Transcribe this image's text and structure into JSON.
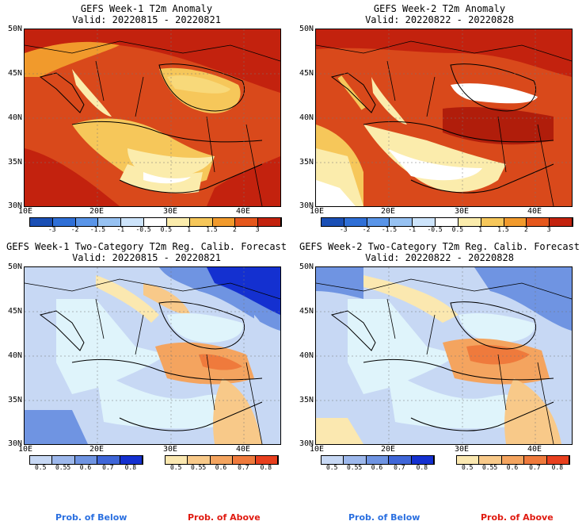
{
  "panels": [
    {
      "title1": "GEFS Week-1 T2m Anomaly",
      "title2": "Valid: 20220815 - 20220821",
      "type": "anomaly"
    },
    {
      "title1": "GEFS Week-2 T2m Anomaly",
      "title2": "Valid: 20220822 - 20220828",
      "type": "anomaly"
    },
    {
      "title1": "GEFS Week-1 Two-Category T2m Reg. Calib. Forecast",
      "title2": "Valid: 20220815 - 20220821",
      "type": "prob"
    },
    {
      "title1": "GEFS Week-2 Two-Category T2m Reg. Calib. Forecast",
      "title2": "Valid: 20220822 - 20220828",
      "type": "prob"
    }
  ],
  "lat_labels": [
    "50N",
    "45N",
    "40N",
    "35N",
    "30N"
  ],
  "lon_labels": [
    "10E",
    "20E",
    "30E",
    "40E"
  ],
  "anomaly_colorbar": {
    "labels": [
      "-3",
      "-2",
      "-1.5",
      "-1",
      "-0.5",
      "0.5",
      "1",
      "1.5",
      "2",
      "3"
    ],
    "colors": [
      "#1a4fb5",
      "#2f6fd6",
      "#5a95e8",
      "#97c2f2",
      "#cde4fb",
      "#ffffff",
      "#fbecac",
      "#f6c75a",
      "#f19a2c",
      "#e5571c",
      "#c3220e"
    ]
  },
  "below_colorbar": {
    "labels": [
      "0.5",
      "0.55",
      "0.6",
      "0.7",
      "0.8"
    ],
    "colors": [
      "#c7d8f4",
      "#9db8ec",
      "#6f94e2",
      "#3f66d8",
      "#1430d0"
    ]
  },
  "above_colorbar": {
    "labels": [
      "0.5",
      "0.55",
      "0.6",
      "0.7",
      "0.8"
    ],
    "colors": [
      "#fbe8b0",
      "#f8c989",
      "#f4a45f",
      "#ef7a3c",
      "#e83f1e"
    ]
  },
  "prob_below_label": "Prob. of Below",
  "prob_above_label": "Prob. of Above",
  "colors": {
    "prob_below": "#2a6fe0",
    "prob_above": "#e01a10",
    "sea_prob": "#dff4fb"
  }
}
